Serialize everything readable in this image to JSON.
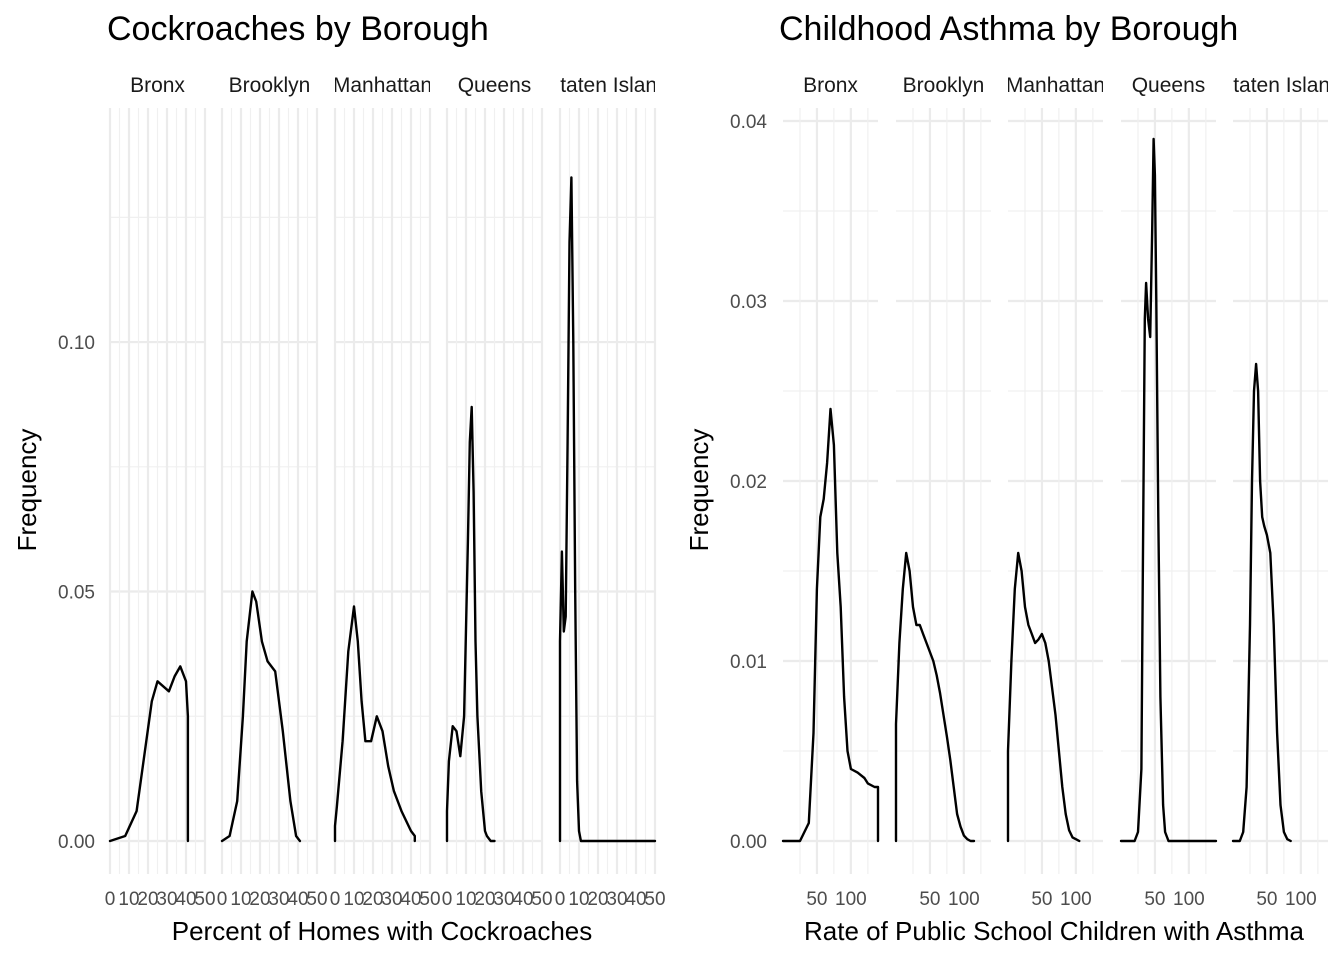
{
  "chart_data": [
    {
      "type": "area",
      "title": "Cockroaches by Borough",
      "xlabel": "Percent of Homes with Cockroaches",
      "ylabel": "Frequency",
      "xlim": [
        0,
        50
      ],
      "ylim": [
        0,
        0.14
      ],
      "x_ticks": [
        "0",
        "10",
        "20",
        "30",
        "40",
        "50"
      ],
      "y_ticks": [
        "0.00",
        "0.05",
        "0.10"
      ],
      "y_tick_values": [
        0,
        0.05,
        0.1
      ],
      "grid": true,
      "facets": [
        {
          "name": "Bronx",
          "x": [
            0,
            8,
            14,
            18,
            22,
            25,
            28,
            31,
            34,
            37,
            40,
            41,
            41
          ],
          "y": [
            0,
            0.001,
            0.006,
            0.017,
            0.028,
            0.032,
            0.031,
            0.03,
            0.033,
            0.035,
            0.032,
            0.025,
            0
          ]
        },
        {
          "name": "Brooklyn",
          "x": [
            0,
            4,
            8,
            11,
            13,
            16,
            18,
            21,
            24,
            28,
            32,
            36,
            39,
            41
          ],
          "y": [
            0,
            0.001,
            0.008,
            0.025,
            0.04,
            0.05,
            0.048,
            0.04,
            0.036,
            0.034,
            0.022,
            0.008,
            0.001,
            0
          ]
        },
        {
          "name": "Manhattan",
          "x": [
            0,
            0,
            1,
            4,
            7,
            10,
            12,
            14,
            16,
            19,
            22,
            25,
            28,
            31,
            35,
            40,
            42,
            42
          ],
          "y": [
            0,
            0.003,
            0.007,
            0.02,
            0.038,
            0.047,
            0.04,
            0.028,
            0.02,
            0.02,
            0.025,
            0.022,
            0.015,
            0.01,
            0.006,
            0.002,
            0.001,
            0
          ]
        },
        {
          "name": "Queens",
          "x": [
            0,
            0,
            1,
            3,
            5,
            7,
            9,
            11,
            12,
            13,
            14,
            15,
            16,
            18,
            20,
            21,
            23,
            25
          ],
          "y": [
            0,
            0.006,
            0.016,
            0.023,
            0.022,
            0.017,
            0.025,
            0.06,
            0.08,
            0.087,
            0.07,
            0.04,
            0.025,
            0.01,
            0.002,
            0.001,
            0,
            0
          ]
        },
        {
          "name": "Staten Island",
          "x": [
            0,
            0,
            1,
            2,
            3,
            4,
            5,
            6,
            7,
            8,
            9,
            10,
            11,
            12,
            50
          ],
          "y": [
            0,
            0.04,
            0.058,
            0.042,
            0.045,
            0.08,
            0.12,
            0.133,
            0.1,
            0.05,
            0.012,
            0.002,
            0,
            0,
            0
          ]
        }
      ]
    },
    {
      "type": "area",
      "title": "Childhood Asthma by Borough",
      "xlabel": "Rate of Public School Children with Asthma",
      "ylabel": "Frequency",
      "xlim": [
        0,
        140
      ],
      "ylim": [
        0,
        0.04
      ],
      "x_ticks": [
        "50",
        "100"
      ],
      "x_tick_values": [
        50,
        100
      ],
      "y_ticks": [
        "0.00",
        "0.01",
        "0.02",
        "0.03",
        "0.04"
      ],
      "y_tick_values": [
        0,
        0.01,
        0.02,
        0.03,
        0.04
      ],
      "grid": true,
      "facets": [
        {
          "name": "Bronx",
          "x": [
            0,
            25,
            38,
            45,
            50,
            55,
            60,
            65,
            70,
            75,
            80,
            85,
            90,
            95,
            100,
            110,
            120,
            125,
            135,
            140,
            140
          ],
          "y": [
            0,
            0,
            0.001,
            0.006,
            0.014,
            0.018,
            0.019,
            0.021,
            0.024,
            0.022,
            0.016,
            0.013,
            0.008,
            0.005,
            0.004,
            0.0038,
            0.0035,
            0.0032,
            0.003,
            0.003,
            0
          ]
        },
        {
          "name": "Brooklyn",
          "x": [
            0,
            0,
            5,
            10,
            15,
            20,
            25,
            30,
            35,
            40,
            45,
            50,
            55,
            60,
            65,
            70,
            75,
            80,
            85,
            90,
            95,
            100,
            105,
            110,
            115
          ],
          "y": [
            0,
            0.0065,
            0.011,
            0.014,
            0.016,
            0.015,
            0.013,
            0.012,
            0.012,
            0.0115,
            0.011,
            0.0105,
            0.01,
            0.0092,
            0.0082,
            0.007,
            0.0058,
            0.0045,
            0.003,
            0.0015,
            0.0008,
            0.0003,
            0.0001,
            0,
            0
          ]
        },
        {
          "name": "Manhattan",
          "x": [
            0,
            0,
            5,
            10,
            15,
            20,
            25,
            30,
            35,
            40,
            45,
            50,
            55,
            60,
            65,
            70,
            75,
            80,
            85,
            90,
            95,
            100,
            105
          ],
          "y": [
            0,
            0.005,
            0.01,
            0.014,
            0.016,
            0.015,
            0.013,
            0.012,
            0.0115,
            0.011,
            0.0112,
            0.0115,
            0.011,
            0.01,
            0.0085,
            0.007,
            0.005,
            0.003,
            0.0015,
            0.0006,
            0.0002,
            0.0001,
            0
          ]
        },
        {
          "name": "Queens",
          "x": [
            0,
            20,
            25,
            30,
            32,
            35,
            37,
            40,
            43,
            46,
            48,
            50,
            52,
            55,
            58,
            62,
            65,
            70,
            140
          ],
          "y": [
            0,
            0,
            0.0005,
            0.004,
            0.014,
            0.029,
            0.031,
            0.029,
            0.028,
            0.034,
            0.039,
            0.037,
            0.03,
            0.018,
            0.008,
            0.002,
            0.0005,
            0,
            0
          ]
        },
        {
          "name": "Staten Island",
          "x": [
            0,
            10,
            15,
            20,
            25,
            28,
            31,
            34,
            37,
            40,
            43,
            46,
            50,
            55,
            60,
            65,
            70,
            75,
            80,
            85
          ],
          "y": [
            0,
            0,
            0.0005,
            0.003,
            0.012,
            0.02,
            0.025,
            0.0265,
            0.025,
            0.02,
            0.018,
            0.0175,
            0.017,
            0.016,
            0.012,
            0.006,
            0.002,
            0.0005,
            0.0001,
            0
          ]
        }
      ]
    }
  ]
}
